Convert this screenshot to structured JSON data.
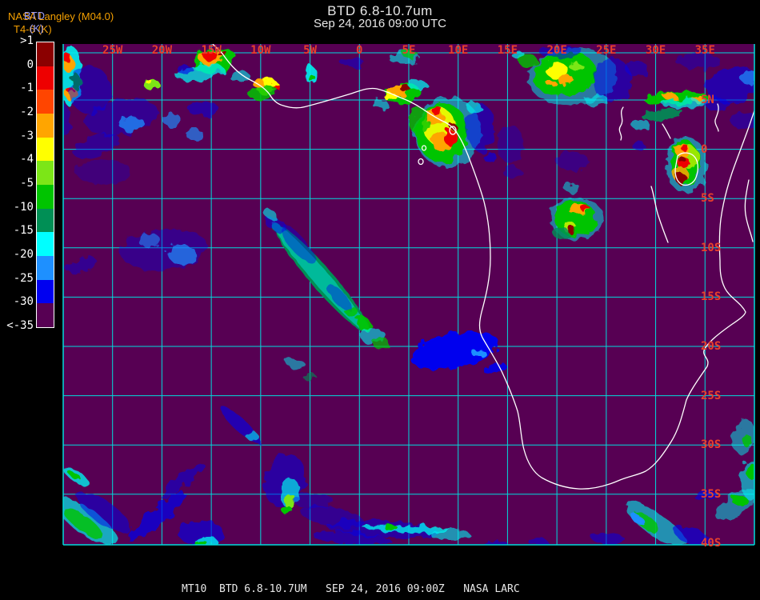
{
  "header": {
    "title_line1": "BTD 6.8-10.7um",
    "title_line2": "Sep 24, 2016 09:00 UTC"
  },
  "branding": {
    "org": "NASA Langley (M04.0)",
    "product": "BTD",
    "units": "T4-6 (K)",
    "units_overlay": "(K)"
  },
  "colorbar": {
    "labels": [
      ">1",
      "0",
      "-1",
      "-2",
      "-3",
      "-4",
      "-5",
      "-10",
      "-15",
      "-20",
      "-25",
      "-30",
      "<-35"
    ],
    "colors": [
      "#8B0000",
      "#EE0000",
      "#FF4500",
      "#FFA500",
      "#FFFF00",
      "#7CE617",
      "#00C400",
      "#008F55",
      "#00FFFF",
      "#1E90FF",
      "#0000F0",
      "#570053"
    ]
  },
  "map": {
    "lon_labels": [
      "25W",
      "20W",
      "15W",
      "10W",
      "5W",
      "0",
      "5E",
      "10E",
      "15E",
      "20E",
      "25E",
      "30E",
      "35E"
    ],
    "lat_labels": [
      "5N",
      "0",
      "5S",
      "10S",
      "15S",
      "20S",
      "25S",
      "30S",
      "35S",
      "40S"
    ],
    "bg_color": "#570053",
    "grid_color": "#00DCDC",
    "label_color": "#E8402C",
    "coast_color": "#FFFFFF",
    "palette": {
      "B": "#0000EE",
      "D": "#1E90FF",
      "C": "#00F0F0",
      "T": "#008F55",
      "G": "#00C400",
      "L": "#7CE617",
      "Y": "#FFFF00",
      "O": "#FFA500",
      "R": "#FF4500",
      "E": "#EE0000",
      "K": "#8B0000"
    },
    "clouds": [
      [
        88,
        95,
        14,
        38,
        0,
        "C",
        0.9
      ],
      [
        95,
        102,
        7,
        9,
        0,
        "G",
        1
      ],
      [
        86,
        80,
        8,
        10,
        0,
        "O",
        1
      ],
      [
        84,
        72,
        5,
        6,
        0,
        "E",
        1
      ],
      [
        88,
        117,
        7,
        9,
        0,
        "O",
        1
      ],
      [
        87,
        112,
        4,
        4,
        0,
        "E",
        1
      ],
      [
        112,
        112,
        26,
        30,
        0,
        "B",
        0.45
      ],
      [
        70,
        150,
        18,
        25,
        0,
        "B",
        0.4
      ],
      [
        268,
        76,
        27,
        15,
        -15,
        "G",
        1
      ],
      [
        266,
        72,
        16,
        9,
        -15,
        "O",
        1
      ],
      [
        263,
        70,
        9,
        6,
        0,
        "E",
        1
      ],
      [
        279,
        68,
        6,
        4,
        0,
        "K",
        1
      ],
      [
        250,
        91,
        30,
        10,
        -10,
        "C",
        0.75
      ],
      [
        300,
        96,
        13,
        7,
        0,
        "C",
        0.6
      ],
      [
        232,
        88,
        10,
        6,
        0,
        "B",
        0.6
      ],
      [
        190,
        106,
        10,
        7,
        0,
        "L",
        1
      ],
      [
        187,
        103,
        4,
        3,
        0,
        "Y",
        1
      ],
      [
        334,
        108,
        14,
        9,
        -10,
        "Y",
        1
      ],
      [
        344,
        108,
        5,
        4,
        0,
        "E",
        1
      ],
      [
        329,
        116,
        18,
        10,
        -10,
        "G",
        0.85
      ],
      [
        322,
        103,
        8,
        5,
        0,
        "O",
        1
      ],
      [
        388,
        93,
        7,
        11,
        0,
        "C",
        0.9
      ],
      [
        388,
        96,
        4,
        5,
        0,
        "G",
        1
      ],
      [
        152,
        146,
        46,
        22,
        -10,
        "B",
        0.4
      ],
      [
        165,
        155,
        16,
        10,
        0,
        "D",
        0.75
      ],
      [
        215,
        150,
        12,
        8,
        0,
        "D",
        0.65
      ],
      [
        243,
        168,
        11,
        7,
        0,
        "D",
        0.65
      ],
      [
        120,
        182,
        30,
        12,
        -20,
        "B",
        0.4
      ],
      [
        255,
        137,
        20,
        8,
        0,
        "B",
        0.5
      ],
      [
        130,
        215,
        35,
        15,
        0,
        "B",
        0.25
      ],
      [
        205,
        312,
        55,
        25,
        -5,
        "B",
        0.35
      ],
      [
        228,
        318,
        18,
        12,
        0,
        "D",
        0.7
      ],
      [
        186,
        300,
        14,
        9,
        0,
        "D",
        0.55
      ],
      [
        102,
        332,
        20,
        10,
        -15,
        "B",
        0.4
      ],
      [
        440,
        78,
        15,
        6,
        0,
        "B",
        0.45
      ],
      [
        505,
        72,
        20,
        8,
        0,
        "C",
        0.6
      ],
      [
        513,
        68,
        10,
        5,
        0,
        "G",
        0.7
      ],
      [
        503,
        117,
        22,
        13,
        -10,
        "G",
        1
      ],
      [
        497,
        113,
        12,
        8,
        0,
        "O",
        1
      ],
      [
        506,
        110,
        6,
        5,
        0,
        "K",
        1
      ],
      [
        488,
        121,
        8,
        5,
        0,
        "Y",
        1
      ],
      [
        522,
        106,
        12,
        6,
        0,
        "C",
        0.75
      ],
      [
        475,
        130,
        10,
        6,
        0,
        "C",
        0.6
      ],
      [
        560,
        165,
        42,
        44,
        0,
        "C",
        0.55
      ],
      [
        553,
        166,
        33,
        37,
        0,
        "G",
        1
      ],
      [
        549,
        158,
        20,
        23,
        0,
        "Y",
        0.9
      ],
      [
        543,
        146,
        12,
        9,
        0,
        "O",
        1
      ],
      [
        548,
        140,
        7,
        5,
        0,
        "E",
        1
      ],
      [
        552,
        177,
        13,
        12,
        0,
        "O",
        1
      ],
      [
        563,
        172,
        8,
        10,
        0,
        "E",
        1
      ],
      [
        566,
        158,
        4,
        4,
        0,
        "K",
        1
      ],
      [
        524,
        151,
        12,
        18,
        0,
        "G",
        0.8
      ],
      [
        601,
        160,
        17,
        30,
        0,
        "B",
        0.5
      ],
      [
        592,
        134,
        10,
        6,
        0,
        "C",
        0.7
      ],
      [
        612,
        196,
        9,
        6,
        0,
        "B",
        0.6
      ],
      [
        638,
        180,
        16,
        24,
        0,
        "B",
        0.3
      ],
      [
        716,
        96,
        56,
        35,
        -5,
        "C",
        0.5
      ],
      [
        706,
        93,
        40,
        27,
        -8,
        "G",
        1
      ],
      [
        696,
        88,
        14,
        10,
        0,
        "Y",
        1
      ],
      [
        707,
        100,
        10,
        7,
        0,
        "O",
        1
      ],
      [
        690,
        105,
        6,
        4,
        0,
        "O",
        1
      ],
      [
        719,
        82,
        9,
        5,
        0,
        "L",
        1
      ],
      [
        660,
        76,
        12,
        8,
        0,
        "G",
        0.8
      ],
      [
        649,
        70,
        8,
        5,
        0,
        "C",
        0.7
      ],
      [
        766,
        101,
        24,
        28,
        0,
        "B",
        0.5
      ],
      [
        746,
        126,
        15,
        8,
        0,
        "C",
        0.6
      ],
      [
        702,
        65,
        28,
        7,
        0,
        "B",
        0.5
      ],
      [
        795,
        85,
        14,
        10,
        0,
        "B",
        0.45
      ],
      [
        845,
        123,
        40,
        8,
        -3,
        "G",
        1
      ],
      [
        838,
        121,
        8,
        5,
        0,
        "O",
        1
      ],
      [
        872,
        124,
        7,
        5,
        0,
        "O",
        1
      ],
      [
        858,
        129,
        30,
        6,
        -3,
        "C",
        0.7
      ],
      [
        828,
        143,
        26,
        6,
        -8,
        "T",
        0.9
      ],
      [
        800,
        155,
        12,
        6,
        0,
        "C",
        0.6
      ],
      [
        798,
        182,
        8,
        6,
        0,
        "B",
        0.5
      ],
      [
        916,
        106,
        34,
        22,
        -10,
        "B",
        0.55
      ],
      [
        936,
        96,
        12,
        8,
        0,
        "D",
        0.7
      ],
      [
        896,
        130,
        15,
        8,
        0,
        "B",
        0.5
      ],
      [
        872,
        76,
        28,
        10,
        0,
        "B",
        0.35
      ],
      [
        930,
        150,
        18,
        10,
        0,
        "B",
        0.4
      ],
      [
        858,
        206,
        26,
        35,
        0,
        "C",
        0.55
      ],
      [
        856,
        203,
        18,
        29,
        -5,
        "G",
        1
      ],
      [
        860,
        196,
        12,
        15,
        0,
        "Y",
        0.6
      ],
      [
        853,
        188,
        10,
        8,
        0,
        "O",
        1
      ],
      [
        856,
        185,
        5,
        4,
        0,
        "E",
        1
      ],
      [
        850,
        217,
        10,
        10,
        0,
        "O",
        0.85
      ],
      [
        854,
        203,
        8,
        7,
        0,
        "E",
        1
      ],
      [
        853,
        200,
        4,
        4,
        0,
        "K",
        1
      ],
      [
        851,
        223,
        7,
        7,
        0,
        "K",
        1
      ],
      [
        721,
        273,
        33,
        27,
        0,
        "C",
        0.5
      ],
      [
        719,
        273,
        26,
        22,
        0,
        "G",
        1
      ],
      [
        723,
        261,
        14,
        6,
        0,
        "O",
        1
      ],
      [
        731,
        260,
        6,
        4,
        0,
        "E",
        1
      ],
      [
        712,
        284,
        8,
        7,
        0,
        "Y",
        0.7
      ],
      [
        715,
        288,
        5,
        5,
        0,
        "K",
        1
      ],
      [
        701,
        291,
        10,
        8,
        0,
        "T",
        0.8
      ],
      [
        715,
        235,
        10,
        6,
        0,
        "C",
        0.5
      ],
      [
        716,
        202,
        20,
        12,
        0,
        "B",
        0.3
      ],
      [
        640,
        215,
        12,
        7,
        0,
        "B",
        0.3
      ],
      [
        402,
        348,
        90,
        14,
        49,
        "T",
        1
      ],
      [
        401,
        347,
        92,
        10,
        49,
        "C",
        0.45
      ],
      [
        372,
        305,
        30,
        10,
        49,
        "B",
        0.4
      ],
      [
        345,
        281,
        14,
        8,
        20,
        "B",
        0.5
      ],
      [
        338,
        268,
        10,
        6,
        40,
        "C",
        0.6
      ],
      [
        424,
        372,
        20,
        8,
        49,
        "B",
        0.4
      ],
      [
        455,
        405,
        12,
        8,
        49,
        "G",
        0.9
      ],
      [
        440,
        390,
        8,
        6,
        0,
        "G",
        0.8
      ],
      [
        466,
        420,
        16,
        10,
        0,
        "C",
        0.6
      ],
      [
        477,
        430,
        10,
        8,
        0,
        "G",
        0.7
      ],
      [
        370,
        455,
        14,
        7,
        20,
        "C",
        0.5
      ],
      [
        386,
        470,
        8,
        5,
        0,
        "T",
        0.6
      ],
      [
        568,
        438,
        56,
        22,
        -12,
        "B",
        1
      ],
      [
        598,
        441,
        9,
        5,
        0,
        "D",
        1
      ],
      [
        618,
        460,
        14,
        6,
        -20,
        "B",
        0.9
      ],
      [
        95,
        595,
        18,
        7,
        35,
        "C",
        0.8
      ],
      [
        93,
        594,
        8,
        4,
        35,
        "G",
        1
      ],
      [
        108,
        652,
        46,
        16,
        35,
        "C",
        0.7
      ],
      [
        104,
        654,
        30,
        9,
        35,
        "G",
        0.8
      ],
      [
        130,
        641,
        40,
        14,
        35,
        "B",
        0.5
      ],
      [
        196,
        646,
        46,
        10,
        -40,
        "B",
        0.7
      ],
      [
        228,
        601,
        34,
        8,
        -40,
        "B",
        0.5
      ],
      [
        300,
        531,
        33,
        8,
        42,
        "B",
        0.6
      ],
      [
        316,
        546,
        8,
        5,
        0,
        "C",
        0.6
      ],
      [
        356,
        601,
        25,
        34,
        15,
        "B",
        0.5
      ],
      [
        362,
        616,
        12,
        18,
        10,
        "C",
        0.7
      ],
      [
        362,
        626,
        7,
        10,
        0,
        "L",
        1
      ],
      [
        360,
        639,
        6,
        6,
        0,
        "G",
        1
      ],
      [
        251,
        666,
        28,
        16,
        0,
        "B",
        0.6
      ],
      [
        258,
        677,
        14,
        6,
        0,
        "C",
        0.8
      ],
      [
        252,
        680,
        8,
        4,
        0,
        "G",
        1
      ],
      [
        478,
        661,
        70,
        10,
        3,
        "B",
        0.5
      ],
      [
        508,
        661,
        55,
        5,
        2,
        "C",
        0.8
      ],
      [
        488,
        659,
        8,
        4,
        0,
        "G",
        1
      ],
      [
        415,
        646,
        40,
        12,
        10,
        "B",
        0.4
      ],
      [
        440,
        673,
        50,
        8,
        5,
        "B",
        0.5
      ],
      [
        392,
        626,
        25,
        10,
        0,
        "B",
        0.35
      ],
      [
        562,
        668,
        25,
        6,
        0,
        "C",
        0.6
      ],
      [
        620,
        680,
        15,
        4,
        0,
        "B",
        0.5
      ],
      [
        672,
        677,
        12,
        5,
        0,
        "B",
        0.5
      ],
      [
        930,
        546,
        14,
        22,
        10,
        "C",
        0.5
      ],
      [
        934,
        551,
        6,
        8,
        0,
        "G",
        0.8
      ],
      [
        938,
        600,
        12,
        25,
        0,
        "C",
        0.6
      ],
      [
        940,
        590,
        6,
        10,
        0,
        "G",
        1
      ],
      [
        920,
        631,
        30,
        14,
        -30,
        "C",
        0.5
      ],
      [
        925,
        626,
        10,
        6,
        0,
        "G",
        1
      ],
      [
        820,
        656,
        46,
        14,
        35,
        "C",
        0.6
      ],
      [
        808,
        653,
        18,
        8,
        35,
        "G",
        0.8
      ],
      [
        797,
        649,
        10,
        5,
        35,
        "D",
        1
      ],
      [
        866,
        671,
        25,
        10,
        20,
        "B",
        0.6
      ],
      [
        881,
        619,
        15,
        6,
        0,
        "B",
        0.6
      ],
      [
        760,
        673,
        20,
        7,
        0,
        "B",
        0.5
      ]
    ],
    "coast_paths": [
      "M256,41 C261,48 263,53 269,58 C272,61 274,63 278,67",
      "M278,67 C289,83 299,93 313,100 C323,105 331,110 337,118 C341,125 346,130 354,132 C363,135 373,136 383,133 C399,129 419,123 439,117 C451,113 461,109 471,111 C481,113 493,119 503,123 C511,126 519,130 528,136 C537,142 547,149 557,153 C564,157 569,162 573,169 C578,177 581,184 585,194 C591,210 599,230 605,252 C611,276 613,300 613,322 C613,346 608,368 602,390 C599,402 598,412 603,422 C611,436 619,448 627,464 C634,479 641,495 647,514 C651,530 651,548 655,562 C659,577 666,590 677,597 C691,605 707,610 723,611 C741,612 759,607 775,600 C787,595 797,594 807,589 C819,582 829,568 839,552 C849,536 853,518 858,500 C864,486 876,470 884,458 C888,448 878,446 880,438 C884,428 900,416 914,406 C926,398 931,394 932,390 C926,378 912,372 906,360 C900,348 900,336 900,326 C899,306 899,290 901,274 C904,252 909,234 915,216 C922,196 930,176 937,156 C941,144 944,136 946,128"
    ],
    "lake_paths": [
      "M847,195 C853,189 864,190 869,197 C874,204 873,216 869,224 C865,231 856,234 850,229 C844,224 843,214 845,206 Z",
      "M814,233 C818,245 819,258 823,270 C827,282 831,293 835,303",
      "M936,225 C933,240 930,254 932,268 C934,282 939,292 941,302",
      "M897,130 C900,137 896,144 894,150 C893,156 898,160 898,164",
      "M828,155 C832,161 835,167 838,173",
      "M779,134 C773,142 781,149 776,157 C771,164 779,168 776,175"
    ],
    "islands": [
      [
        566,
        163,
        4,
        5
      ],
      [
        530,
        185,
        2.5,
        3
      ],
      [
        526,
        202,
        3,
        3.5
      ]
    ]
  },
  "footer": {
    "caption": "MT10  BTD 6.8-10.7UM   SEP 24, 2016 09:00Z   NASA LARC"
  }
}
